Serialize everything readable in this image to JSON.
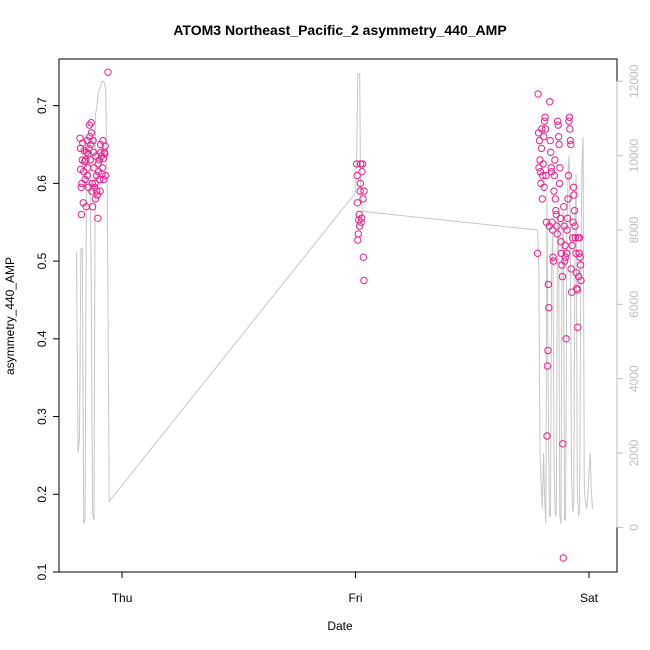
{
  "chart_data": {
    "type": "scatter",
    "title": "ATOM3 Northeast_Pacific_2 asymmetry_440_AMP",
    "xlabel": "Date",
    "ylabel": "asymmetry_440_AMP",
    "x_ticks": [
      {
        "x": 1.0,
        "label": "Thu"
      },
      {
        "x": 2.0,
        "label": "Fri"
      },
      {
        "x": 3.0,
        "label": "Sat"
      }
    ],
    "xlim": [
      0.73,
      3.12
    ],
    "ylim": [
      0.1,
      0.76
    ],
    "y_ticks": [
      0.1,
      0.2,
      0.3,
      0.4,
      0.5,
      0.6,
      0.7
    ],
    "y2lim": [
      -1200,
      12600
    ],
    "y2_ticks": [
      0,
      2000,
      4000,
      6000,
      8000,
      10000,
      12000
    ],
    "colors": {
      "points": "#ee1e8c",
      "line": "#c6c6c6",
      "frame": "#000000",
      "right_axis": "#bdbdbd"
    },
    "series": [
      {
        "type": "scatter",
        "axis": "left",
        "points": [
          [
            0.82,
            0.658
          ],
          [
            0.822,
            0.645
          ],
          [
            0.823,
            0.618
          ],
          [
            0.825,
            0.595
          ],
          [
            0.826,
            0.56
          ],
          [
            0.828,
            0.6
          ],
          [
            0.83,
            0.63
          ],
          [
            0.832,
            0.652
          ],
          [
            0.834,
            0.575
          ],
          [
            0.836,
            0.615
          ],
          [
            0.838,
            0.642
          ],
          [
            0.84,
            0.628
          ],
          [
            0.842,
            0.605
          ],
          [
            0.844,
            0.63
          ],
          [
            0.846,
            0.57
          ],
          [
            0.848,
            0.64
          ],
          [
            0.85,
            0.655
          ],
          [
            0.851,
            0.61
          ],
          [
            0.853,
            0.62
          ],
          [
            0.855,
            0.638
          ],
          [
            0.856,
            0.595
          ],
          [
            0.858,
            0.645
          ],
          [
            0.86,
            0.675
          ],
          [
            0.862,
            0.66
          ],
          [
            0.864,
            0.63
          ],
          [
            0.866,
            0.65
          ],
          [
            0.868,
            0.678
          ],
          [
            0.869,
            0.665
          ],
          [
            0.871,
            0.59
          ],
          [
            0.872,
            0.6
          ],
          [
            0.874,
            0.57
          ],
          [
            0.876,
            0.655
          ],
          [
            0.878,
            0.64
          ],
          [
            0.88,
            0.62
          ],
          [
            0.882,
            0.595
          ],
          [
            0.884,
            0.6
          ],
          [
            0.886,
            0.58
          ],
          [
            0.888,
            0.635
          ],
          [
            0.89,
            0.61
          ],
          [
            0.892,
            0.59
          ],
          [
            0.894,
            0.585
          ],
          [
            0.896,
            0.555
          ],
          [
            0.898,
            0.625
          ],
          [
            0.9,
            0.615
          ],
          [
            0.902,
            0.63
          ],
          [
            0.904,
            0.605
          ],
          [
            0.906,
            0.59
          ],
          [
            0.908,
            0.65
          ],
          [
            0.91,
            0.64
          ],
          [
            0.912,
            0.635
          ],
          [
            0.914,
            0.612
          ],
          [
            0.916,
            0.62
          ],
          [
            0.918,
            0.655
          ],
          [
            0.92,
            0.632
          ],
          [
            0.922,
            0.605
          ],
          [
            0.924,
            0.64
          ],
          [
            0.926,
            0.638
          ],
          [
            0.928,
            0.648
          ],
          [
            0.93,
            0.61
          ],
          [
            0.94,
            0.743
          ],
          [
            2.005,
            0.625
          ],
          [
            2.007,
            0.61
          ],
          [
            2.008,
            0.575
          ],
          [
            2.01,
            0.527
          ],
          [
            2.012,
            0.535
          ],
          [
            2.014,
            0.553
          ],
          [
            2.016,
            0.56
          ],
          [
            2.018,
            0.545
          ],
          [
            2.02,
            0.59
          ],
          [
            2.021,
            0.6
          ],
          [
            2.022,
            0.625
          ],
          [
            2.024,
            0.55
          ],
          [
            2.026,
            0.555
          ],
          [
            2.028,
            0.615
          ],
          [
            2.03,
            0.625
          ],
          [
            2.032,
            0.58
          ],
          [
            2.034,
            0.505
          ],
          [
            2.036,
            0.475
          ],
          [
            2.037,
            0.59
          ],
          [
            2.78,
            0.51
          ],
          [
            2.782,
            0.715
          ],
          [
            2.784,
            0.665
          ],
          [
            2.786,
            0.62
          ],
          [
            2.788,
            0.655
          ],
          [
            2.79,
            0.63
          ],
          [
            2.792,
            0.615
          ],
          [
            2.794,
            0.6
          ],
          [
            2.796,
            0.645
          ],
          [
            2.798,
            0.67
          ],
          [
            2.8,
            0.58
          ],
          [
            2.802,
            0.61
          ],
          [
            2.804,
            0.625
          ],
          [
            2.806,
            0.66
          ],
          [
            2.808,
            0.595
          ],
          [
            2.81,
            0.68
          ],
          [
            2.812,
            0.685
          ],
          [
            2.814,
            0.67
          ],
          [
            2.816,
            0.61
          ],
          [
            2.818,
            0.55
          ],
          [
            2.82,
            0.275
          ],
          [
            2.822,
            0.365
          ],
          [
            2.824,
            0.385
          ],
          [
            2.826,
            0.47
          ],
          [
            2.828,
            0.44
          ],
          [
            2.83,
            0.545
          ],
          [
            2.832,
            0.705
          ],
          [
            2.834,
            0.655
          ],
          [
            2.836,
            0.64
          ],
          [
            2.838,
            0.62
          ],
          [
            2.84,
            0.615
          ],
          [
            2.842,
            0.55
          ],
          [
            2.844,
            0.54
          ],
          [
            2.846,
            0.505
          ],
          [
            2.848,
            0.5
          ],
          [
            2.85,
            0.59
          ],
          [
            2.852,
            0.61
          ],
          [
            2.854,
            0.63
          ],
          [
            2.856,
            0.58
          ],
          [
            2.858,
            0.565
          ],
          [
            2.86,
            0.56
          ],
          [
            2.862,
            0.545
          ],
          [
            2.864,
            0.535
          ],
          [
            2.866,
            0.68
          ],
          [
            2.868,
            0.675
          ],
          [
            2.87,
            0.66
          ],
          [
            2.872,
            0.65
          ],
          [
            2.874,
            0.6
          ],
          [
            2.876,
            0.62
          ],
          [
            2.878,
            0.555
          ],
          [
            2.88,
            0.525
          ],
          [
            2.882,
            0.51
          ],
          [
            2.884,
            0.495
          ],
          [
            2.886,
            0.48
          ],
          [
            2.888,
            0.265
          ],
          [
            2.89,
            0.118
          ],
          [
            2.892,
            0.57
          ],
          [
            2.894,
            0.545
          ],
          [
            2.896,
            0.5
          ],
          [
            2.898,
            0.52
          ],
          [
            2.9,
            0.505
          ],
          [
            2.902,
            0.4
          ],
          [
            2.904,
            0.51
          ],
          [
            2.906,
            0.54
          ],
          [
            2.908,
            0.555
          ],
          [
            2.91,
            0.58
          ],
          [
            2.912,
            0.61
          ],
          [
            2.914,
            0.68
          ],
          [
            2.916,
            0.685
          ],
          [
            2.918,
            0.67
          ],
          [
            2.92,
            0.655
          ],
          [
            2.922,
            0.65
          ],
          [
            2.924,
            0.49
          ],
          [
            2.926,
            0.46
          ],
          [
            2.928,
            0.52
          ],
          [
            2.93,
            0.53
          ],
          [
            2.932,
            0.55
          ],
          [
            2.934,
            0.595
          ],
          [
            2.936,
            0.585
          ],
          [
            2.938,
            0.565
          ],
          [
            2.94,
            0.545
          ],
          [
            2.942,
            0.53
          ],
          [
            2.944,
            0.51
          ],
          [
            2.946,
            0.485
          ],
          [
            2.948,
            0.465
          ],
          [
            2.95,
            0.463
          ],
          [
            2.952,
            0.415
          ],
          [
            2.954,
            0.53
          ],
          [
            2.956,
            0.48
          ],
          [
            2.958,
            0.51
          ],
          [
            2.96,
            0.53
          ],
          [
            2.962,
            0.505
          ],
          [
            2.964,
            0.495
          ],
          [
            2.966,
            0.475
          ]
        ]
      },
      {
        "type": "line",
        "axis": "right",
        "points": [
          [
            0.805,
            7400
          ],
          [
            0.812,
            2000
          ],
          [
            0.818,
            2400
          ],
          [
            0.824,
            7500
          ],
          [
            0.83,
            7500
          ],
          [
            0.836,
            100
          ],
          [
            0.842,
            200
          ],
          [
            0.848,
            9800
          ],
          [
            0.855,
            10200
          ],
          [
            0.862,
            9800
          ],
          [
            0.868,
            6800
          ],
          [
            0.874,
            400
          ],
          [
            0.88,
            200
          ],
          [
            0.886,
            11100
          ],
          [
            0.892,
            11300
          ],
          [
            0.898,
            11700
          ],
          [
            0.904,
            11800
          ],
          [
            0.91,
            11900
          ],
          [
            0.916,
            12000
          ],
          [
            0.922,
            12000
          ],
          [
            0.93,
            11800
          ],
          [
            0.937,
            9000
          ],
          [
            0.945,
            700
          ],
          [
            2.0,
            9000
          ],
          [
            2.005,
            10000
          ],
          [
            2.01,
            12200
          ],
          [
            2.018,
            12200
          ],
          [
            2.022,
            9000
          ],
          [
            2.03,
            8500
          ],
          [
            2.78,
            8000
          ],
          [
            2.785,
            7000
          ],
          [
            2.79,
            2000
          ],
          [
            2.795,
            1200
          ],
          [
            2.8,
            500
          ],
          [
            2.805,
            2000
          ],
          [
            2.81,
            800
          ],
          [
            2.815,
            100
          ],
          [
            2.82,
            9000
          ],
          [
            2.825,
            4000
          ],
          [
            2.83,
            300
          ],
          [
            2.835,
            300
          ],
          [
            2.84,
            7000
          ],
          [
            2.845,
            8000
          ],
          [
            2.85,
            2000
          ],
          [
            2.855,
            400
          ],
          [
            2.86,
            300
          ],
          [
            2.865,
            8200
          ],
          [
            2.87,
            8500
          ],
          [
            2.875,
            300
          ],
          [
            2.88,
            100
          ],
          [
            2.885,
            7900
          ],
          [
            2.89,
            8500
          ],
          [
            2.895,
            200
          ],
          [
            2.9,
            200
          ],
          [
            2.905,
            7800
          ],
          [
            2.91,
            9500
          ],
          [
            2.915,
            10000
          ],
          [
            2.92,
            8200
          ],
          [
            2.925,
            1500
          ],
          [
            2.93,
            400
          ],
          [
            2.935,
            600
          ],
          [
            2.94,
            8000
          ],
          [
            2.945,
            9500
          ],
          [
            2.95,
            1000
          ],
          [
            2.955,
            300
          ],
          [
            2.96,
            500
          ],
          [
            2.965,
            6900
          ],
          [
            2.97,
            9800
          ],
          [
            2.975,
            10500
          ],
          [
            2.98,
            1000
          ],
          [
            2.985,
            700
          ],
          [
            2.99,
            500
          ],
          [
            2.995,
            800
          ],
          [
            3.0,
            1500
          ],
          [
            3.005,
            2000
          ],
          [
            3.01,
            1000
          ],
          [
            3.015,
            500
          ]
        ]
      }
    ]
  }
}
